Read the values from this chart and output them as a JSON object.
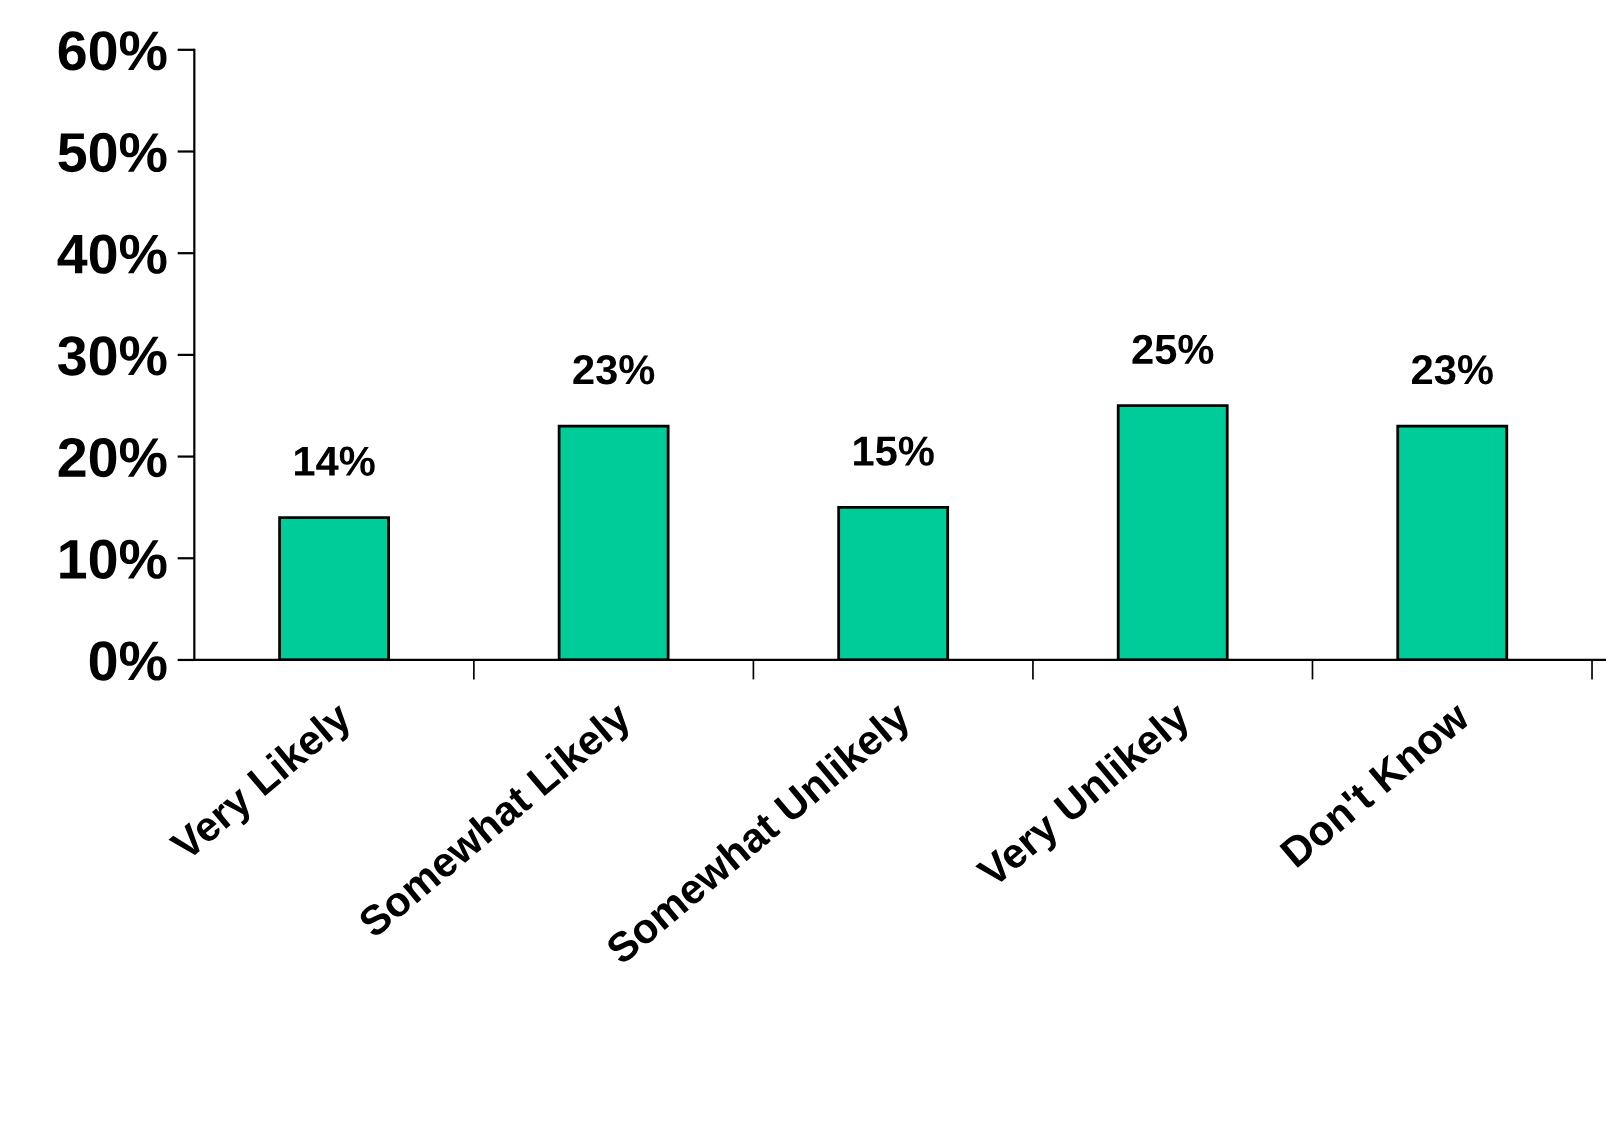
{
  "chart_data": {
    "type": "bar",
    "categories": [
      "Very Likely",
      "Somewhat Likely",
      "Somewhat Unlikely",
      "Very Unlikely",
      "Don't Know"
    ],
    "values": [
      14,
      23,
      15,
      25,
      23
    ],
    "value_labels": [
      "14%",
      "23%",
      "15%",
      "25%",
      "23%"
    ],
    "color": "#00cc99",
    "ylim": [
      0,
      60
    ],
    "yticks": [
      {
        "value": 0,
        "label": "0%"
      },
      {
        "value": 10,
        "label": "10%"
      },
      {
        "value": 20,
        "label": "20%"
      },
      {
        "value": 30,
        "label": "30%"
      },
      {
        "value": 40,
        "label": "40%"
      },
      {
        "value": 50,
        "label": "50%"
      },
      {
        "value": 60,
        "label": "60%"
      }
    ],
    "grid": false,
    "legend": false
  }
}
